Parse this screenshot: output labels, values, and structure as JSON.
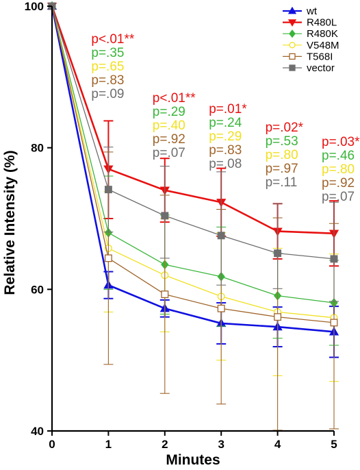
{
  "chart_data": {
    "type": "line",
    "xlabel": "Minutes",
    "ylabel": "Relative Intensity (%)",
    "xlim": [
      0,
      5
    ],
    "ylim": [
      40,
      100
    ],
    "x_ticks": [
      0,
      1,
      2,
      3,
      4,
      5
    ],
    "y_ticks": [
      40,
      60,
      80,
      100
    ],
    "grid": false,
    "legend_position": "top-right",
    "x": [
      0,
      1,
      2,
      3,
      4,
      5
    ],
    "series": [
      {
        "name": "wt",
        "color": "#1010e0",
        "marker": "triangle-up",
        "filled": true,
        "width": 2.6,
        "values": [
          100,
          60.6,
          57.3,
          55.2,
          54.7,
          54.0
        ],
        "err_up": [
          0,
          1.9,
          1.2,
          2.9,
          2.8,
          3.6
        ],
        "err_down": [
          0,
          1.9,
          1.2,
          2.9,
          2.8,
          3.6
        ]
      },
      {
        "name": "R480L",
        "color": "#e81010",
        "marker": "triangle-down",
        "filled": true,
        "width": 2.6,
        "values": [
          100,
          77.0,
          74.0,
          72.3,
          68.2,
          67.9
        ],
        "err_up": [
          0,
          6.8,
          4.5,
          4.8,
          3.9,
          4.6
        ],
        "err_down": [
          0,
          7.0,
          4.5,
          4.8,
          3.9,
          4.6
        ]
      },
      {
        "name": "R480K",
        "color": "#3ab53a",
        "marker": "diamond",
        "filled": true,
        "width": 1.3,
        "values": [
          100,
          68.0,
          63.5,
          61.8,
          59.1,
          58.1
        ],
        "err_up": [
          0,
          8.0,
          7.0,
          7.0,
          6.0,
          6.0
        ],
        "err_down": [
          0,
          8.0,
          7.0,
          7.0,
          6.0,
          6.0
        ]
      },
      {
        "name": "V548M",
        "color": "#f0e020",
        "marker": "circle",
        "filled": false,
        "width": 1.3,
        "values": [
          100,
          65.8,
          62.0,
          59.0,
          56.8,
          56.0
        ],
        "err_up": [
          0,
          8.0,
          8.0,
          9.0,
          9.0,
          9.0
        ],
        "err_down": [
          0,
          9.0,
          8.0,
          9.0,
          9.0,
          9.0
        ]
      },
      {
        "name": "T568I",
        "color": "#a0642a",
        "marker": "square",
        "filled": false,
        "width": 1.3,
        "values": [
          100,
          64.4,
          59.3,
          57.3,
          56.1,
          55.3
        ],
        "err_up": [
          0,
          15.0,
          14.0,
          14.0,
          14.0,
          14.0
        ],
        "err_down": [
          0,
          15.0,
          14.0,
          13.5,
          16.0,
          15.0
        ]
      },
      {
        "name": "vector",
        "color": "#6e6e6e",
        "marker": "square",
        "filled": true,
        "width": 1.3,
        "values": [
          100,
          74.1,
          70.4,
          67.6,
          65.1,
          64.3
        ],
        "err_up": [
          0,
          6.0,
          7.0,
          9.0,
          7.0,
          8.0
        ],
        "err_down": [
          0,
          6.0,
          6.0,
          7.0,
          5.0,
          6.0
        ]
      }
    ],
    "annotations": [
      {
        "x": 1,
        "lines": [
          {
            "text": "p<.01**",
            "color": "#e81010"
          },
          {
            "text": "p=.35",
            "color": "#3ab53a"
          },
          {
            "text": "p=.65",
            "color": "#f0e020"
          },
          {
            "text": "p=.83",
            "color": "#a0642a"
          },
          {
            "text": "p=.09",
            "color": "#6e6e6e"
          }
        ]
      },
      {
        "x": 2,
        "lines": [
          {
            "text": "p<.01**",
            "color": "#e81010"
          },
          {
            "text": "p=.29",
            "color": "#3ab53a"
          },
          {
            "text": "p=.40",
            "color": "#f0e020"
          },
          {
            "text": "p=.92",
            "color": "#a0642a"
          },
          {
            "text": "p=.07",
            "color": "#6e6e6e"
          }
        ]
      },
      {
        "x": 3,
        "lines": [
          {
            "text": "p=.01*",
            "color": "#e81010"
          },
          {
            "text": "p=.24",
            "color": "#3ab53a"
          },
          {
            "text": "p=.29",
            "color": "#f0e020"
          },
          {
            "text": "p=.83",
            "color": "#a0642a"
          },
          {
            "text": "p=.08",
            "color": "#6e6e6e"
          }
        ]
      },
      {
        "x": 4,
        "lines": [
          {
            "text": "p=.02*",
            "color": "#e81010"
          },
          {
            "text": "p=.53",
            "color": "#3ab53a"
          },
          {
            "text": "p=.80",
            "color": "#f0e020"
          },
          {
            "text": "p=.97",
            "color": "#a0642a"
          },
          {
            "text": "p=.11",
            "color": "#6e6e6e"
          }
        ]
      },
      {
        "x": 5,
        "lines": [
          {
            "text": "p=.03*",
            "color": "#e81010"
          },
          {
            "text": "p=.46",
            "color": "#3ab53a"
          },
          {
            "text": "p=.80",
            "color": "#f0e020"
          },
          {
            "text": "p=.92",
            "color": "#a0642a"
          },
          {
            "text": "p=.07",
            "color": "#6e6e6e"
          }
        ]
      }
    ]
  }
}
